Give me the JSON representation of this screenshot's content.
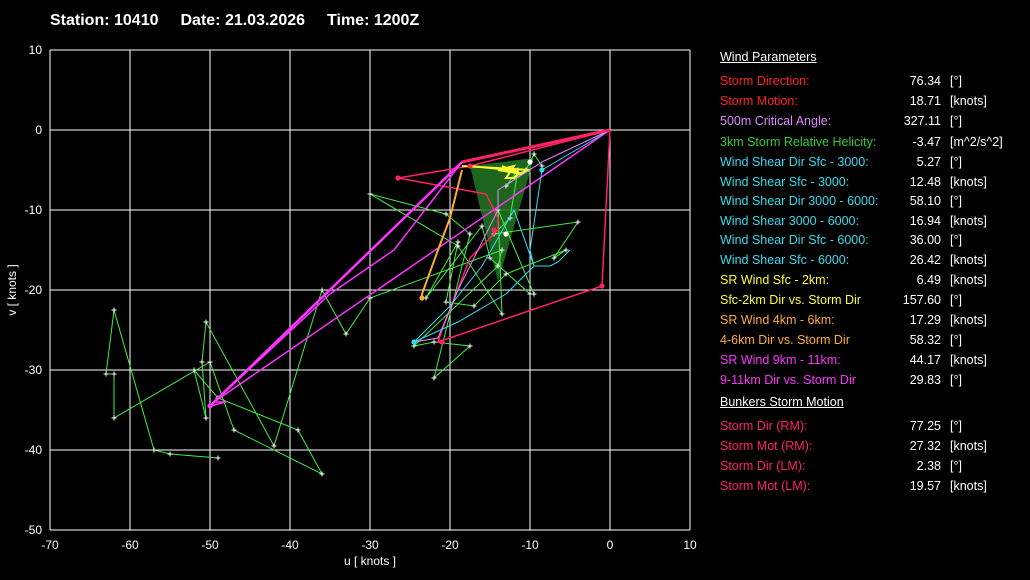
{
  "header": {
    "station": "Station: 10410",
    "date": "Date: 21.03.2026",
    "time": "Time: 1200Z"
  },
  "colors": {
    "background": "#000000",
    "grid": "#ffffff",
    "green": "#44ee44",
    "pink": "#ff2266",
    "magenta": "#ff33ff",
    "yellow": "#ffff33",
    "orange": "#ffaa33",
    "cyan": "#33ddee",
    "violet": "#dd88ff"
  },
  "chart_data": {
    "type": "scatter",
    "title": "",
    "xlabel": "u  [ knots ]",
    "ylabel": "v  [ knots ]",
    "xlim": [
      -70,
      10
    ],
    "ylim": [
      -50,
      10
    ],
    "xticks": [
      "-70",
      "-60",
      "-50",
      "-40",
      "-30",
      "-20",
      "-10",
      "0",
      "10"
    ],
    "yticks": [
      "10",
      "0",
      "-10",
      "-20",
      "-30",
      "-40",
      "-50"
    ],
    "grid": true,
    "series": [
      {
        "color": "#44ee44",
        "x": [
          -8.5,
          -9.5,
          -10.5,
          -13,
          -11.5,
          -12.5,
          -14.5,
          -4,
          -7,
          -5.5,
          -13,
          -17,
          -20.5,
          -19,
          -23,
          -16,
          -15,
          -10,
          -9.5,
          -14,
          -13.5,
          -19,
          -30,
          -20.5,
          -17.5,
          -22,
          -17.5,
          -22,
          -24.5,
          -14,
          -13.5,
          -30,
          -33,
          -36,
          -42,
          -50.5,
          -51,
          -50.5,
          -52,
          -49,
          -39,
          -36,
          -47,
          -50,
          -62,
          -62,
          -63,
          -62,
          -57,
          -55,
          -49
        ],
        "y": [
          -4.5,
          -3,
          -5,
          -7,
          -5,
          -11,
          -13,
          -11.5,
          -16,
          -15,
          -18,
          -22,
          -21.5,
          -14,
          -21,
          -12,
          -16,
          -20.5,
          -20.5,
          -10,
          -23,
          -14.5,
          -8,
          -10.5,
          -13,
          -31,
          -27,
          -26.5,
          -27,
          -17,
          -15,
          -21,
          -25.5,
          -20,
          -39.5,
          -24,
          -29,
          -36,
          -30,
          -33.5,
          -37.5,
          -43,
          -37.5,
          -29,
          -36,
          -30.5,
          -30.5,
          -22.5,
          -40,
          -40.5,
          -41
        ]
      },
      {
        "color": "#ff2266",
        "x": [
          0,
          -17.5,
          -26.5,
          -15.5,
          -14,
          -14,
          -17.5,
          -21,
          -21.5,
          -1,
          0
        ],
        "y": [
          0,
          -4.5,
          -6,
          -8,
          -11,
          -12.5,
          -16,
          -25,
          -26.5,
          -19.5,
          0
        ]
      },
      {
        "color": "#ff33ff",
        "x": [
          0,
          -18.5,
          -27,
          -35,
          -50,
          -49.5,
          -48,
          -50,
          -49.5,
          0
        ],
        "y": [
          0,
          -4,
          -15,
          -20.5,
          -34.5,
          -34,
          -34,
          -34.5,
          -34,
          0
        ]
      },
      {
        "color": "#ffff33",
        "x": [
          -17.5,
          -12.5,
          -13.5,
          -11,
          -14,
          -12,
          -13,
          -12,
          -11.5,
          -10,
          -18.5
        ],
        "y": [
          -4.5,
          -5,
          -4.5,
          -5.5,
          -5,
          -4.5,
          -6,
          -6,
          -5.5,
          -5,
          -4.5
        ]
      },
      {
        "color": "#ffaa33",
        "x": [
          -18.5,
          -20,
          -21.5,
          -23.5,
          -23.5,
          -23.5
        ],
        "y": [
          -5,
          -11,
          -15,
          -20.5,
          -21,
          -21
        ]
      },
      {
        "color": "#33ddee",
        "x": [
          0,
          -8.5,
          -10,
          -9.5,
          -12,
          -16,
          -20,
          -24.5,
          -19,
          -13,
          -9.5,
          -7.5,
          -6.5,
          -5
        ],
        "y": [
          0,
          -5,
          -15,
          -17,
          -10,
          -17,
          -22,
          -26.5,
          -24,
          -20.5,
          -17,
          -17,
          -16.5,
          -15
        ]
      },
      {
        "color": "#dd88ff",
        "x": [
          0,
          -8.5,
          -14,
          -14,
          -19,
          -21.5,
          -24.5
        ],
        "y": [
          0,
          -4,
          -7.5,
          -10,
          -20,
          -26,
          -26.5
        ]
      }
    ],
    "shaded_region": {
      "color": "#227722",
      "x": [
        -17.5,
        -9.5,
        -14,
        -17.5
      ],
      "y": [
        -4.5,
        -3.5,
        -19,
        -4.5
      ]
    },
    "points": [
      {
        "color": "#ff2266",
        "x": -26.5,
        "y": -6
      },
      {
        "color": "#ff2266",
        "x": -17.5,
        "y": -4.5
      },
      {
        "color": "#ff2266",
        "x": -1,
        "y": -19.5
      },
      {
        "color": "#ff2266",
        "x": -21,
        "y": -26.5
      },
      {
        "color": "#ff2266",
        "x": -14.5,
        "y": -12.5
      },
      {
        "color": "#ff33ff",
        "x": -50,
        "y": -34.5
      },
      {
        "color": "#ffaa33",
        "x": -23.5,
        "y": -21
      },
      {
        "color": "#33ddee",
        "x": -24.5,
        "y": -26.5
      },
      {
        "color": "#33ddee",
        "x": -8.5,
        "y": -5
      },
      {
        "color": "#ffffff",
        "x": -10,
        "y": -4
      },
      {
        "color": "#ffffff",
        "x": -13,
        "y": -13
      }
    ]
  },
  "params": {
    "title": "Wind Parameters",
    "rows": [
      {
        "label": "Storm Direction:",
        "value": "76.34",
        "unit": "[°]",
        "color": "#ff2222"
      },
      {
        "label": "Storm Motion:",
        "value": "18.71",
        "unit": "[knots]",
        "color": "#ff2222"
      },
      {
        "label": "500m Critical Angle:",
        "value": "327.11",
        "unit": "[°]",
        "color": "#dd88ff"
      },
      {
        "label": "3km Storm Relative Helicity:",
        "value": "-3.47",
        "unit": "[m^2/s^2]",
        "color": "#33cc33"
      },
      {
        "label": "Wind Shear Dir Sfc - 3000:",
        "value": "5.27",
        "unit": "[°]",
        "color": "#33ddee"
      },
      {
        "label": "Wind Shear Sfc - 3000:",
        "value": "12.48",
        "unit": "[knots]",
        "color": "#33ddee"
      },
      {
        "label": "Wind Shear Dir 3000 - 6000:",
        "value": "58.10",
        "unit": "[°]",
        "color": "#33ddee"
      },
      {
        "label": "Wind Shear 3000 - 6000:",
        "value": "16.94",
        "unit": "[knots]",
        "color": "#33ddee"
      },
      {
        "label": "Wind Shear Dir Sfc - 6000:",
        "value": "36.00",
        "unit": "[°]",
        "color": "#33ddee"
      },
      {
        "label": "Wind Shear Sfc - 6000:",
        "value": "26.42",
        "unit": "[knots]",
        "color": "#33ddee"
      },
      {
        "label": "SR Wind Sfc - 2km:",
        "value": "6.49",
        "unit": "[knots]",
        "color": "#ffff33"
      },
      {
        "label": "Sfc-2km Dir vs. Storm Dir",
        "value": "157.60",
        "unit": "[°]",
        "color": "#ffff33"
      },
      {
        "label": "SR Wind 4km - 6km:",
        "value": "17.29",
        "unit": "[knots]",
        "color": "#ffaa33"
      },
      {
        "label": "4-6km Dir vs. Storm Dir",
        "value": "58.32",
        "unit": "[°]",
        "color": "#ffaa33"
      },
      {
        "label": "SR Wind 9km - 11km:",
        "value": "44.17",
        "unit": "[knots]",
        "color": "#ff33ff"
      },
      {
        "label": "9-11km Dir vs. Storm Dir",
        "value": "29.83",
        "unit": "[°]",
        "color": "#ff33ff"
      }
    ],
    "bunkers_title": "Bunkers Storm Motion",
    "bunkers_rows": [
      {
        "label": "Storm Dir (RM):",
        "value": "77.25",
        "unit": "[°]",
        "color": "#ff2266"
      },
      {
        "label": "Storm Mot (RM):",
        "value": "27.32",
        "unit": "[knots]",
        "color": "#ff2266"
      },
      {
        "label": "Storm Dir (LM):",
        "value": "2.38",
        "unit": "[°]",
        "color": "#ff2266"
      },
      {
        "label": "Storm Mot (LM):",
        "value": "19.57",
        "unit": "[knots]",
        "color": "#ff2266"
      }
    ]
  }
}
